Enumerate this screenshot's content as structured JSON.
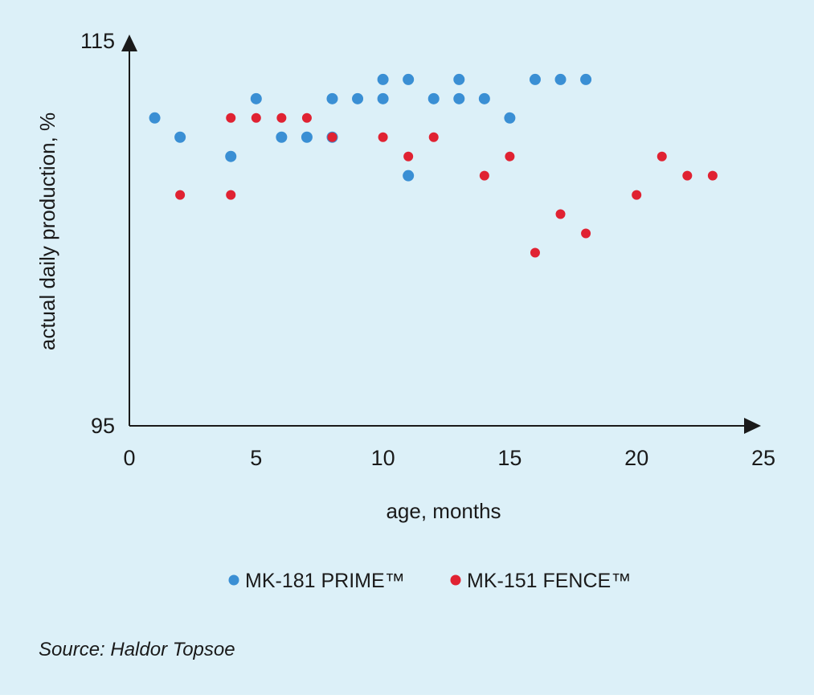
{
  "chart_data": {
    "type": "scatter",
    "xlabel": "age, months",
    "ylabel": "actual daily production, %",
    "xlim": [
      0,
      25
    ],
    "ylim": [
      95,
      115
    ],
    "x_ticks": [
      "0",
      "5",
      "10",
      "15",
      "20",
      "25"
    ],
    "y_ticks": [
      "95",
      "115"
    ],
    "grid": false,
    "legend_position": "bottom-center",
    "series": [
      {
        "name": "MK-181 PRIME™",
        "color": "#3a8fd4",
        "points": [
          [
            1,
            111
          ],
          [
            2,
            110
          ],
          [
            4,
            109
          ],
          [
            5,
            112
          ],
          [
            6,
            110
          ],
          [
            7,
            110
          ],
          [
            8,
            110
          ],
          [
            8,
            112
          ],
          [
            9,
            112
          ],
          [
            10,
            112
          ],
          [
            10,
            113
          ],
          [
            11,
            113
          ],
          [
            11,
            108
          ],
          [
            12,
            112
          ],
          [
            13,
            112
          ],
          [
            13,
            113
          ],
          [
            14,
            112
          ],
          [
            15,
            111
          ],
          [
            16,
            113
          ],
          [
            17,
            113
          ],
          [
            18,
            113
          ]
        ]
      },
      {
        "name": "MK-151 FENCE™",
        "color": "#e02232",
        "points": [
          [
            2,
            107
          ],
          [
            4,
            107
          ],
          [
            4,
            111
          ],
          [
            5,
            111
          ],
          [
            6,
            111
          ],
          [
            7,
            111
          ],
          [
            8,
            110
          ],
          [
            10,
            110
          ],
          [
            11,
            109
          ],
          [
            12,
            110
          ],
          [
            14,
            108
          ],
          [
            15,
            109
          ],
          [
            16,
            104
          ],
          [
            17,
            106
          ],
          [
            18,
            105
          ],
          [
            20,
            107
          ],
          [
            21,
            109
          ],
          [
            22,
            108
          ],
          [
            23,
            108
          ]
        ]
      }
    ]
  },
  "source": "Source: Haldor Topsoe"
}
